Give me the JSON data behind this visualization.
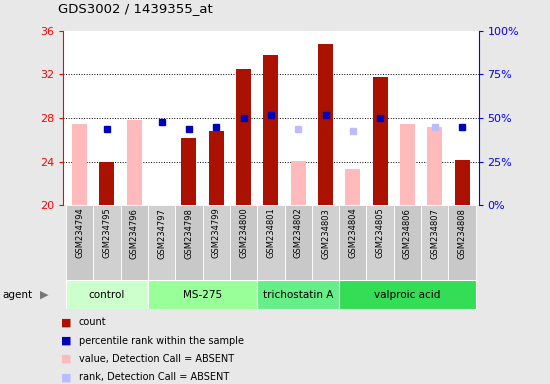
{
  "title": "GDS3002 / 1439355_at",
  "samples": [
    "GSM234794",
    "GSM234795",
    "GSM234796",
    "GSM234797",
    "GSM234798",
    "GSM234799",
    "GSM234800",
    "GSM234801",
    "GSM234802",
    "GSM234803",
    "GSM234804",
    "GSM234805",
    "GSM234806",
    "GSM234807",
    "GSM234808"
  ],
  "count_present": [
    null,
    24.0,
    null,
    null,
    26.2,
    26.8,
    32.5,
    33.8,
    null,
    34.8,
    null,
    31.8,
    null,
    null,
    24.2
  ],
  "count_absent": [
    27.5,
    null,
    27.8,
    null,
    null,
    null,
    null,
    null,
    24.1,
    null,
    23.3,
    null,
    27.5,
    27.2,
    null
  ],
  "rank_present": [
    null,
    27.0,
    null,
    27.6,
    27.0,
    27.2,
    28.0,
    28.3,
    null,
    28.3,
    null,
    28.0,
    null,
    null,
    27.2
  ],
  "rank_absent": [
    null,
    null,
    null,
    null,
    null,
    null,
    null,
    null,
    27.0,
    null,
    26.8,
    null,
    null,
    27.2,
    null
  ],
  "agent_groups": [
    {
      "label": "control",
      "start": 0,
      "end": 3
    },
    {
      "label": "MS-275",
      "start": 3,
      "end": 7
    },
    {
      "label": "trichostatin A",
      "start": 7,
      "end": 10
    },
    {
      "label": "valproic acid",
      "start": 10,
      "end": 15
    }
  ],
  "agent_colors": [
    "#ccffcc",
    "#99ff99",
    "#66ee88",
    "#33dd55"
  ],
  "ylim_left": [
    20,
    36
  ],
  "yticks_left": [
    20,
    24,
    28,
    32,
    36
  ],
  "yticks_right": [
    0,
    25,
    50,
    75,
    100
  ],
  "bar_color_present": "#aa1100",
  "bar_color_absent": "#ffbbbb",
  "rank_color_present": "#0000bb",
  "rank_color_absent": "#bbbbff",
  "grid_lines": [
    24,
    28,
    32
  ],
  "bar_width": 0.55,
  "bg_color": "#e8e8e8",
  "plot_bg": "#ffffff",
  "sample_box_color": "#cccccc",
  "legend_items": [
    {
      "color": "#aa1100",
      "label": "count"
    },
    {
      "color": "#0000bb",
      "label": "percentile rank within the sample"
    },
    {
      "color": "#ffbbbb",
      "label": "value, Detection Call = ABSENT"
    },
    {
      "color": "#bbbbff",
      "label": "rank, Detection Call = ABSENT"
    }
  ]
}
